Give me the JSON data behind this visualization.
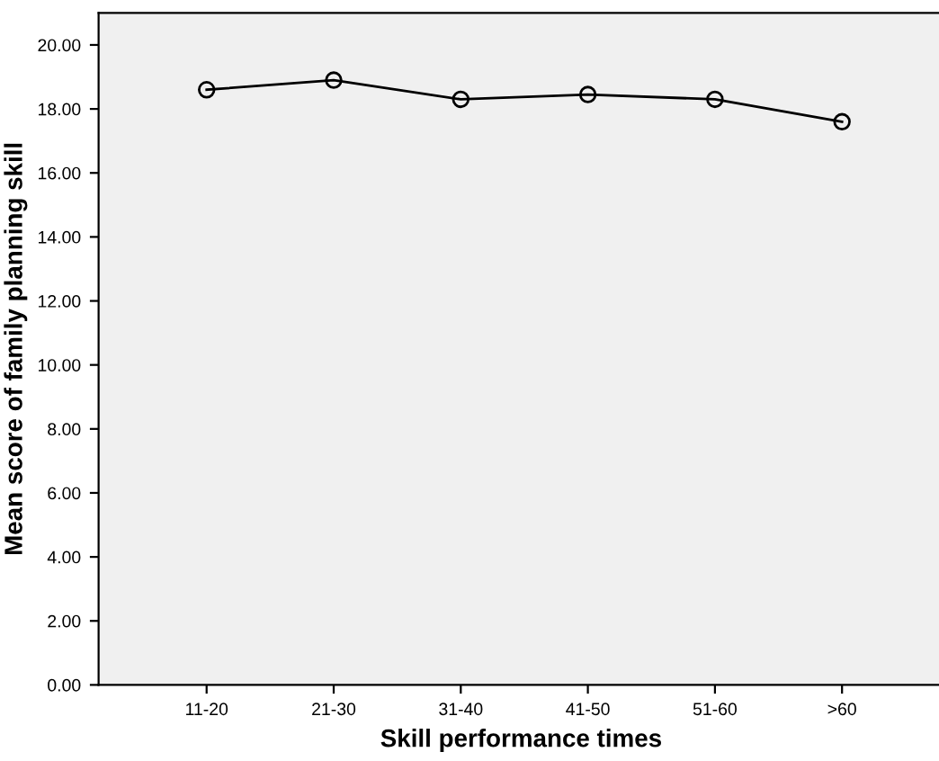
{
  "chart_data": {
    "type": "line",
    "xlabel": "Skill performance times",
    "ylabel": "Mean score of family planning skill",
    "categories": [
      "11-20",
      "21-30",
      "31-40",
      "41-50",
      "51-60",
      ">60"
    ],
    "series": [
      {
        "color": "#000000",
        "values": [
          18.6,
          18.9,
          18.3,
          18.45,
          18.3,
          17.6
        ]
      }
    ],
    "ylim": [
      0,
      21
    ],
    "yticks": [
      {
        "value": 0,
        "label": "0.00"
      },
      {
        "value": 2,
        "label": "2.00"
      },
      {
        "value": 4,
        "label": "4.00"
      },
      {
        "value": 6,
        "label": "6.00"
      },
      {
        "value": 8,
        "label": "8.00"
      },
      {
        "value": 10,
        "label": "10.00"
      },
      {
        "value": 12,
        "label": "12.00"
      },
      {
        "value": 14,
        "label": "14.00"
      },
      {
        "value": 16,
        "label": "16.00"
      },
      {
        "value": 18,
        "label": "18.00"
      },
      {
        "value": 20,
        "label": "20.00"
      }
    ],
    "marker": "circle",
    "line_style": "solid",
    "grid": false,
    "legend": false
  }
}
